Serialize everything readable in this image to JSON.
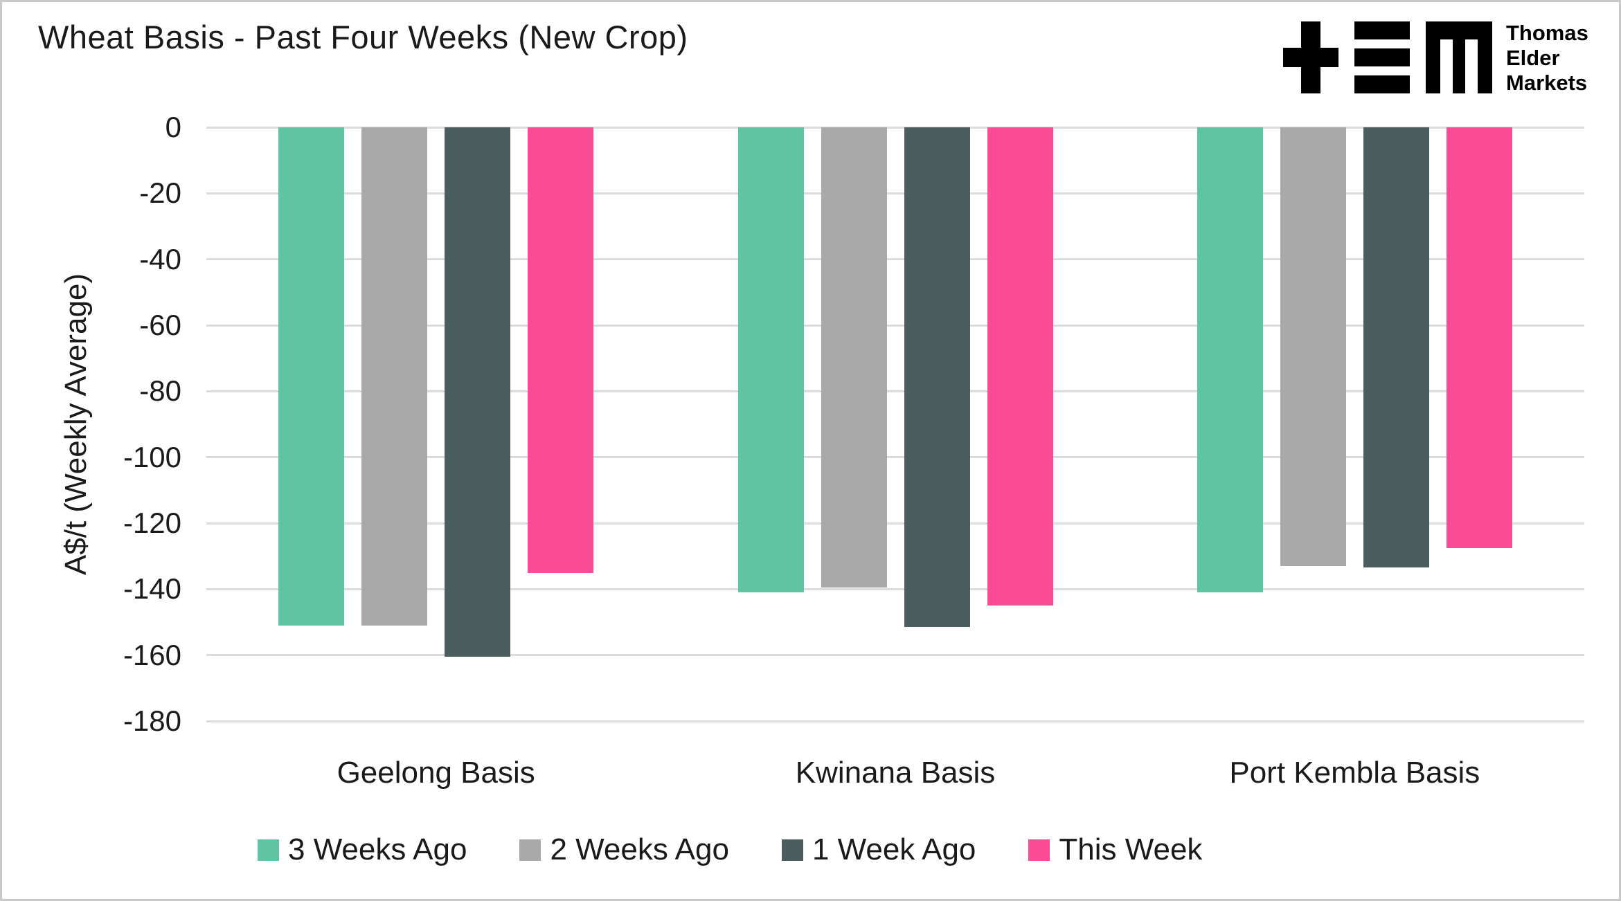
{
  "header": {
    "title": "Wheat Basis - Past Four Weeks (New Crop)",
    "logo_text_lines": [
      "Thomas",
      "Elder",
      "Markets"
    ]
  },
  "chart_data": {
    "type": "bar",
    "title": "Wheat Basis - Past Four Weeks (New Crop)",
    "ylabel": "A$/t (Weekly Average)",
    "xlabel": "",
    "categories": [
      "Geelong Basis",
      "Kwinana Basis",
      "Port Kembla Basis"
    ],
    "series": [
      {
        "name": "3 Weeks Ago",
        "color": "#5FC4A2",
        "values": [
          -151,
          -141,
          -141
        ]
      },
      {
        "name": "2 Weeks Ago",
        "color": "#A9A9A9",
        "values": [
          -151,
          -139.5,
          -133
        ]
      },
      {
        "name": "1 Week Ago",
        "color": "#4C5D60",
        "values": [
          -160.5,
          -151.5,
          -133.5
        ]
      },
      {
        "name": "This Week",
        "color": "#FB4B94",
        "values": [
          -135,
          -145,
          -127.5
        ]
      }
    ],
    "ylim": [
      0,
      -180
    ],
    "ytick_step": 20,
    "grid": true,
    "legend_position": "bottom"
  },
  "colors": {
    "grid": "#dcdcdc",
    "text": "#1a1a1a",
    "background": "#ffffff",
    "border": "#c9c9c9",
    "logo": "#000000"
  }
}
